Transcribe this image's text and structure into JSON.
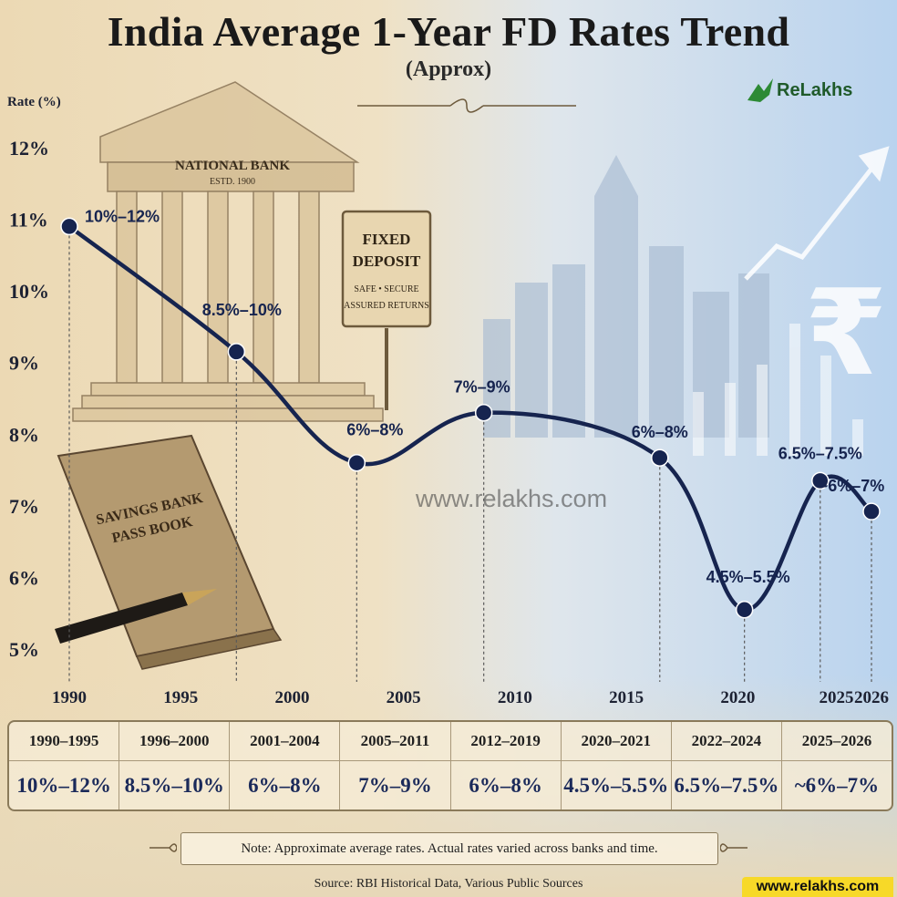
{
  "title": "India Average 1-Year FD Rates Trend",
  "subtitle": "(Approx)",
  "brand": "ReLakhs",
  "watermark": "www.relakhs.com",
  "illustration": {
    "bank_sign": "NATIONAL BANK",
    "bank_estd": "ESTD. 1900",
    "fd_sign_line1": "FIXED",
    "fd_sign_line2": "DEPOSIT",
    "fd_sign_line3": "SAFE • SECURE",
    "fd_sign_line4": "ASSURED RETURNS",
    "passbook_line1": "SAVINGS BANK",
    "passbook_line2": "PASS BOOK",
    "rupee_symbol": "₹"
  },
  "chart_data": {
    "type": "line",
    "ylabel": "Rate (%)",
    "xlabel": "",
    "ylim": [
      5,
      12
    ],
    "yticks": [
      5,
      6,
      7,
      8,
      9,
      10,
      11,
      12
    ],
    "ytick_labels": [
      "5%",
      "6%",
      "7%",
      "8%",
      "9%",
      "10%",
      "11%",
      "12%"
    ],
    "xlim": [
      1990,
      2026
    ],
    "xticks": [
      1990,
      1995,
      2000,
      2005,
      2010,
      2015,
      2020,
      2025,
      2026
    ],
    "points": [
      {
        "x": 1990,
        "y": 10.9,
        "label": "10%–12%"
      },
      {
        "x": 1997.5,
        "y": 9.15,
        "label": "8.5%–10%"
      },
      {
        "x": 2002.9,
        "y": 7.6,
        "label": "6%–8%"
      },
      {
        "x": 2008.6,
        "y": 8.3,
        "label": "7%–9%"
      },
      {
        "x": 2016.5,
        "y": 7.67,
        "label": "6%–8%"
      },
      {
        "x": 2020.3,
        "y": 5.55,
        "label": "4.5%–5.5%"
      },
      {
        "x": 2023.7,
        "y": 7.35,
        "label": "6.5%–7.5%"
      },
      {
        "x": 2026,
        "y": 6.92,
        "label": "~6%–7%"
      }
    ],
    "grid": false,
    "legend": "none"
  },
  "table": [
    {
      "period": "1990–1995",
      "rate": "10%–12%"
    },
    {
      "period": "1996–2000",
      "rate": "8.5%–10%"
    },
    {
      "period": "2001–2004",
      "rate": "6%–8%"
    },
    {
      "period": "2005–2011",
      "rate": "7%–9%"
    },
    {
      "period": "2012–2019",
      "rate": "6%–8%"
    },
    {
      "period": "2020–2021",
      "rate": "4.5%–5.5%"
    },
    {
      "period": "2022–2024",
      "rate": "6.5%–7.5%"
    },
    {
      "period": "2025–2026",
      "rate": "~6%–7%"
    }
  ],
  "note": "Note: Approximate average rates. Actual rates varied across banks and time.",
  "source": "Source: RBI Historical Data, Various Public Sources",
  "website": "www.relakhs.com",
  "colors": {
    "line": "#16244f",
    "label": "#16244f",
    "parchment": "#ecdcbc",
    "sky": "#c9dcef",
    "highlight": "#f7d928"
  }
}
